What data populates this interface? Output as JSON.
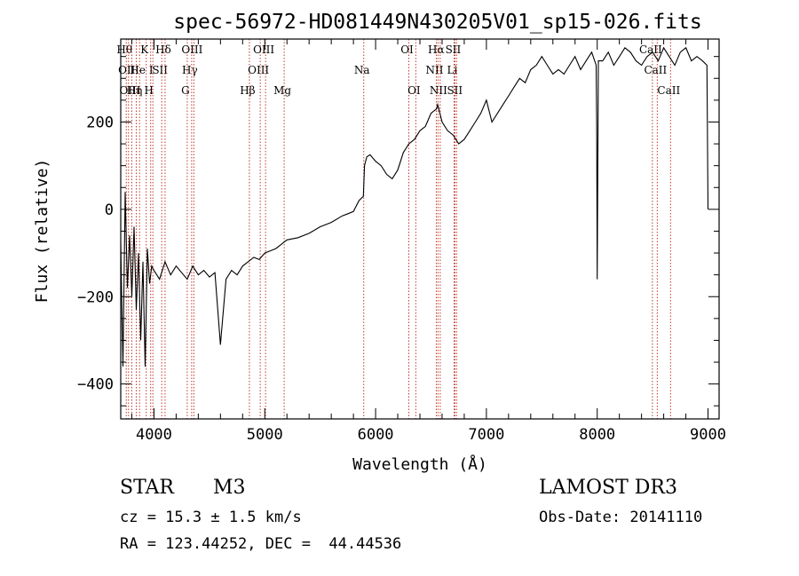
{
  "chart_data": {
    "type": "line",
    "title": "spec-56972-HD081449N430205V01_sp15-026.fits",
    "xlabel": "Wavelength (Å)",
    "ylabel": "Flux (relative)",
    "xlim": [
      3700,
      9100
    ],
    "ylim": [
      -480,
      390
    ],
    "x_ticks": [
      4000,
      5000,
      6000,
      7000,
      8000,
      9000
    ],
    "y_ticks": [
      -400,
      -200,
      0,
      200
    ],
    "series": [
      {
        "name": "flux",
        "x": [
          3700,
          3720,
          3740,
          3760,
          3780,
          3800,
          3820,
          3840,
          3860,
          3880,
          3900,
          3920,
          3940,
          3960,
          3980,
          4000,
          4050,
          4100,
          4150,
          4200,
          4250,
          4300,
          4350,
          4400,
          4450,
          4500,
          4550,
          4600,
          4650,
          4700,
          4750,
          4800,
          4850,
          4900,
          4950,
          5000,
          5050,
          5100,
          5150,
          5200,
          5300,
          5400,
          5500,
          5600,
          5700,
          5750,
          5800,
          5850,
          5890,
          5900,
          5920,
          5950,
          6000,
          6050,
          6100,
          6150,
          6200,
          6250,
          6300,
          6350,
          6400,
          6450,
          6500,
          6550,
          6560,
          6600,
          6650,
          6700,
          6750,
          6800,
          6850,
          6900,
          6950,
          7000,
          7050,
          7100,
          7150,
          7200,
          7250,
          7300,
          7350,
          7400,
          7450,
          7500,
          7550,
          7600,
          7650,
          7700,
          7750,
          7800,
          7850,
          7900,
          7950,
          7990,
          7995,
          8000,
          8010,
          8050,
          8100,
          8150,
          8200,
          8250,
          8300,
          8350,
          8400,
          8450,
          8500,
          8550,
          8600,
          8650,
          8700,
          8750,
          8800,
          8850,
          8900,
          8950,
          8990,
          9000
        ],
        "y": [
          -80,
          -360,
          40,
          -180,
          -60,
          -200,
          -40,
          -230,
          -100,
          -300,
          -120,
          -360,
          -90,
          -170,
          -130,
          -140,
          -160,
          -120,
          -150,
          -130,
          -145,
          -160,
          -130,
          -150,
          -140,
          -155,
          -145,
          -310,
          -160,
          -140,
          -150,
          -130,
          -120,
          -110,
          -115,
          -100,
          -95,
          -90,
          -80,
          -70,
          -65,
          -55,
          -40,
          -30,
          -15,
          -10,
          -5,
          20,
          30,
          100,
          120,
          125,
          110,
          100,
          80,
          70,
          90,
          130,
          150,
          160,
          180,
          190,
          220,
          230,
          240,
          200,
          180,
          170,
          150,
          160,
          180,
          200,
          220,
          250,
          200,
          220,
          240,
          260,
          280,
          300,
          290,
          320,
          330,
          350,
          330,
          310,
          320,
          310,
          330,
          350,
          320,
          340,
          360,
          330,
          200,
          -160,
          340,
          340,
          360,
          330,
          350,
          370,
          360,
          340,
          330,
          350,
          360,
          340,
          370,
          350,
          330,
          360,
          370,
          340,
          350,
          340,
          330,
          0
        ]
      }
    ],
    "lines": [
      {
        "wl": 3750,
        "label": "Hθ",
        "row": 1
      },
      {
        "wl": 3770,
        "label": "OII",
        "row": 2
      },
      {
        "wl": 3800,
        "label": "OIII",
        "row": 3
      },
      {
        "wl": 3840,
        "label": "Hη",
        "row": 3
      },
      {
        "wl": 3870,
        "label": "He",
        "row": 2
      },
      {
        "wl": 3930,
        "label": "K",
        "row": 1
      },
      {
        "wl": 3970,
        "label": "H",
        "row": 3
      },
      {
        "wl": 3990,
        "label": "I",
        "row": 2
      },
      {
        "wl": 4070,
        "label": "SII",
        "row": 2
      },
      {
        "wl": 4100,
        "label": "Hδ",
        "row": 1
      },
      {
        "wl": 4300,
        "label": "G",
        "row": 3
      },
      {
        "wl": 4340,
        "label": "Hγ",
        "row": 2
      },
      {
        "wl": 4360,
        "label": "OIII",
        "row": 1
      },
      {
        "wl": 4861,
        "label": "Hβ",
        "row": 3
      },
      {
        "wl": 4959,
        "label": "OIII",
        "row": 2
      },
      {
        "wl": 5007,
        "label": "OIII",
        "row": 1
      },
      {
        "wl": 5175,
        "label": "Mg",
        "row": 3
      },
      {
        "wl": 5893,
        "label": "Na",
        "row": 2
      },
      {
        "wl": 6300,
        "label": "OI",
        "row": 1
      },
      {
        "wl": 6363,
        "label": "OI",
        "row": 3
      },
      {
        "wl": 6548,
        "label": "NII",
        "row": 2
      },
      {
        "wl": 6563,
        "label": "Hα",
        "row": 1
      },
      {
        "wl": 6583,
        "label": "NII",
        "row": 3
      },
      {
        "wl": 6708,
        "label": "Li",
        "row": 2
      },
      {
        "wl": 6716,
        "label": "SII",
        "row": 1
      },
      {
        "wl": 6731,
        "label": "SII",
        "row": 3
      },
      {
        "wl": 8498,
        "label": "CaII",
        "row": 1
      },
      {
        "wl": 8542,
        "label": "CaII",
        "row": 2
      },
      {
        "wl": 8662,
        "label": "CaII",
        "row": 3
      }
    ]
  },
  "info": {
    "class": "STAR",
    "subclass": "M3",
    "survey": "LAMOST DR3",
    "cz": "cz = 15.3 ± 1.5 km/s",
    "obs_date": "Obs-Date: 20141110",
    "radec": "RA = 123.44252, DEC =  44.44536"
  }
}
